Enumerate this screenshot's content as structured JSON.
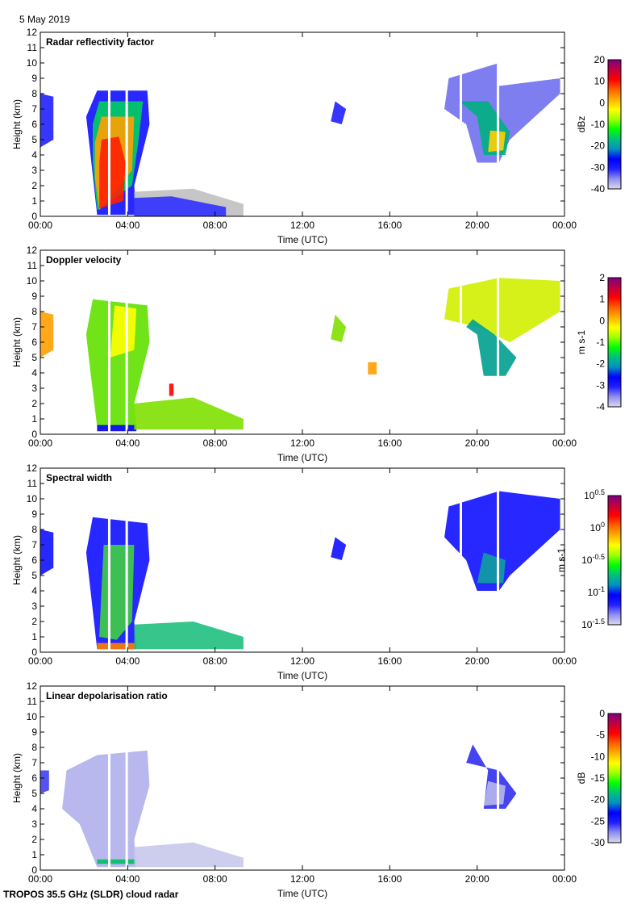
{
  "header": {
    "date": "5 May 2019"
  },
  "footer": {
    "instrument": "TROPOS 35.5 GHz (SLDR) cloud radar"
  },
  "colors": {
    "scale": [
      "#dcd8ec",
      "#9090f0",
      "#2020ff",
      "#0000ff",
      "#0090c0",
      "#00c080",
      "#00ff00",
      "#a0ff00",
      "#ffff00",
      "#ffb000",
      "#ff6000",
      "#ff0000",
      "#c00040",
      "#800080"
    ]
  },
  "chart_data": [
    {
      "type": "heatmap",
      "title": "Radar reflectivity factor",
      "xlabel": "Time (UTC)",
      "ylabel": "Height (km)",
      "xlim": [
        0,
        24
      ],
      "ylim": [
        0,
        12
      ],
      "xticks": [
        "00:00",
        "04:00",
        "08:00",
        "12:00",
        "16:00",
        "20:00",
        "00:00"
      ],
      "yticks": [
        "0",
        "1",
        "2",
        "3",
        "4",
        "5",
        "6",
        "7",
        "8",
        "9",
        "10",
        "11",
        "12"
      ],
      "colorbar": {
        "unit": "dBz",
        "range": [
          -40,
          20
        ],
        "ticks": [
          "20",
          "10",
          "0",
          "-10",
          "-20",
          "-30",
          "-40"
        ]
      },
      "regions": [
        {
          "color": "#2020ff",
          "points": [
            [
              0,
              4.5
            ],
            [
              0,
              8
            ],
            [
              0.6,
              7.8
            ],
            [
              0.6,
              5
            ]
          ]
        },
        {
          "color": "#1010ff",
          "points": [
            [
              2.1,
              6.5
            ],
            [
              2.6,
              8.2
            ],
            [
              4.9,
              8.2
            ],
            [
              5,
              6
            ],
            [
              4.3,
              2
            ],
            [
              4.4,
              0.1
            ],
            [
              2.6,
              0.1
            ],
            [
              2.3,
              4
            ]
          ]
        },
        {
          "color": "#00d060",
          "points": [
            [
              2.4,
              6
            ],
            [
              2.7,
              7.5
            ],
            [
              4.7,
              7.5
            ],
            [
              4.5,
              5
            ],
            [
              4.2,
              2
            ],
            [
              2.6,
              0.4
            ],
            [
              2.4,
              3.5
            ]
          ]
        },
        {
          "color": "#ffa000",
          "points": [
            [
              2.5,
              4.8
            ],
            [
              2.8,
              6.5
            ],
            [
              4.3,
              6.5
            ],
            [
              4.2,
              3
            ],
            [
              2.7,
              0.4
            ],
            [
              2.5,
              2.5
            ]
          ]
        },
        {
          "color": "#ff2000",
          "points": [
            [
              2.7,
              3.5
            ],
            [
              2.8,
              5
            ],
            [
              3.6,
              5.2
            ],
            [
              3.9,
              3.5
            ],
            [
              3.8,
              1
            ],
            [
              2.7,
              0.5
            ]
          ]
        },
        {
          "color": "#c0c0c0",
          "points": [
            [
              4.3,
              0
            ],
            [
              4.3,
              1.6
            ],
            [
              7,
              1.8
            ],
            [
              9.3,
              0.8
            ],
            [
              9.3,
              0
            ]
          ]
        },
        {
          "color": "#3030ff",
          "points": [
            [
              4.3,
              0
            ],
            [
              4.3,
              1.2
            ],
            [
              6,
              1.3
            ],
            [
              8.5,
              0.6
            ],
            [
              8.5,
              0
            ]
          ]
        },
        {
          "color": "#2020ff",
          "points": [
            [
              13.3,
              6.2
            ],
            [
              13.5,
              7.5
            ],
            [
              14,
              7
            ],
            [
              13.8,
              6
            ]
          ]
        },
        {
          "color": "#7070f0",
          "points": [
            [
              18.5,
              7
            ],
            [
              18.7,
              9
            ],
            [
              21,
              10
            ],
            [
              21,
              8.5
            ],
            [
              23.8,
              9
            ],
            [
              23.8,
              8
            ],
            [
              21.5,
              5
            ],
            [
              21,
              3.5
            ],
            [
              20,
              3.5
            ],
            [
              19.5,
              6
            ]
          ]
        },
        {
          "color": "#00b080",
          "points": [
            [
              19.2,
              7.5
            ],
            [
              20,
              6.5
            ],
            [
              20.3,
              4
            ],
            [
              21.3,
              4
            ],
            [
              21.5,
              5.5
            ],
            [
              20.5,
              7.5
            ]
          ]
        },
        {
          "color": "#ffd000",
          "points": [
            [
              20.5,
              4.2
            ],
            [
              20.6,
              5.6
            ],
            [
              21.3,
              5.5
            ],
            [
              21.2,
              4.3
            ]
          ]
        }
      ]
    },
    {
      "type": "heatmap",
      "title": "Doppler velocity",
      "xlabel": "Time (UTC)",
      "ylabel": "Height (km)",
      "xlim": [
        0,
        24
      ],
      "ylim": [
        0,
        12
      ],
      "xticks": [
        "00:00",
        "04:00",
        "08:00",
        "12:00",
        "16:00",
        "20:00",
        "00:00"
      ],
      "yticks": [
        "0",
        "1",
        "2",
        "3",
        "4",
        "5",
        "6",
        "7",
        "8",
        "9",
        "10",
        "11",
        "12"
      ],
      "colorbar": {
        "unit": "m s-1",
        "range": [
          -4,
          2
        ],
        "ticks": [
          "2",
          "1",
          "0",
          "-1",
          "-2",
          "-3",
          "-4"
        ]
      },
      "regions": [
        {
          "color": "#ffa000",
          "points": [
            [
              0,
              5
            ],
            [
              0,
              8
            ],
            [
              0.6,
              7.8
            ],
            [
              0.6,
              5.5
            ]
          ]
        },
        {
          "color": "#60e000",
          "points": [
            [
              2.1,
              6.5
            ],
            [
              2.4,
              8.8
            ],
            [
              4.9,
              8.4
            ],
            [
              5,
              6
            ],
            [
              4.3,
              2
            ],
            [
              4.4,
              0.5
            ],
            [
              2.6,
              0.5
            ],
            [
              2.3,
              4
            ]
          ]
        },
        {
          "color": "#ffff00",
          "points": [
            [
              3.2,
              5
            ],
            [
              3.4,
              8.4
            ],
            [
              4.4,
              8.2
            ],
            [
              4.3,
              5.5
            ]
          ]
        },
        {
          "color": "#0000e0",
          "points": [
            [
              2.6,
              0.2
            ],
            [
              2.6,
              0.6
            ],
            [
              4.4,
              0.6
            ],
            [
              4.4,
              0.2
            ]
          ]
        },
        {
          "color": "#80e000",
          "points": [
            [
              4.3,
              0.3
            ],
            [
              4.3,
              2
            ],
            [
              7,
              2.4
            ],
            [
              9.3,
              1
            ],
            [
              9.3,
              0.3
            ]
          ]
        },
        {
          "color": "#ff0000",
          "points": [
            [
              5.9,
              2.5
            ],
            [
              5.9,
              3.3
            ],
            [
              6.1,
              3.3
            ],
            [
              6.1,
              2.5
            ]
          ]
        },
        {
          "color": "#80e000",
          "points": [
            [
              13.3,
              6.2
            ],
            [
              13.5,
              7.8
            ],
            [
              14,
              7
            ],
            [
              13.8,
              6
            ]
          ]
        },
        {
          "color": "#ffa000",
          "points": [
            [
              15,
              3.9
            ],
            [
              15,
              4.7
            ],
            [
              15.4,
              4.7
            ],
            [
              15.4,
              3.9
            ]
          ]
        },
        {
          "color": "#d0f000",
          "points": [
            [
              18.5,
              7.5
            ],
            [
              18.7,
              9.5
            ],
            [
              21,
              10.2
            ],
            [
              23.8,
              10
            ],
            [
              23.8,
              8
            ],
            [
              21.5,
              6
            ],
            [
              20,
              7
            ]
          ]
        },
        {
          "color": "#00a090",
          "points": [
            [
              19.5,
              7
            ],
            [
              20,
              6.5
            ],
            [
              20.3,
              3.8
            ],
            [
              21.3,
              3.8
            ],
            [
              21.8,
              5
            ],
            [
              20.8,
              6.5
            ],
            [
              19.8,
              7.5
            ]
          ]
        }
      ]
    },
    {
      "type": "heatmap",
      "title": "Spectral width",
      "xlabel": "Time (UTC)",
      "ylabel": "Height (km)",
      "xlim": [
        0,
        24
      ],
      "ylim": [
        0,
        12
      ],
      "xticks": [
        "00:00",
        "04:00",
        "08:00",
        "12:00",
        "16:00",
        "20:00",
        "00:00"
      ],
      "yticks": [
        "0",
        "1",
        "2",
        "3",
        "4",
        "5",
        "6",
        "7",
        "8",
        "9",
        "10",
        "11",
        "12"
      ],
      "colorbar": {
        "unit": "m s-1",
        "range": [
          -1.5,
          0.5
        ],
        "scale": "log10",
        "ticks": [
          "10^0.5",
          "10^0",
          "10^-0.5",
          "10^-1",
          "10^-1.5"
        ]
      },
      "regions": [
        {
          "color": "#1010ff",
          "points": [
            [
              0,
              5
            ],
            [
              0,
              8
            ],
            [
              0.6,
              7.8
            ],
            [
              0.6,
              5.5
            ]
          ]
        },
        {
          "color": "#1010ff",
          "points": [
            [
              2.1,
              6.5
            ],
            [
              2.4,
              8.8
            ],
            [
              4.9,
              8.4
            ],
            [
              5,
              6
            ],
            [
              4.3,
              2
            ],
            [
              4.4,
              0.2
            ],
            [
              2.6,
              0.2
            ],
            [
              2.3,
              4
            ]
          ]
        },
        {
          "color": "#40d040",
          "points": [
            [
              2.7,
              1
            ],
            [
              2.9,
              7
            ],
            [
              4.3,
              7
            ],
            [
              4.2,
              2
            ],
            [
              3.5,
              0.8
            ]
          ]
        },
        {
          "color": "#ff8000",
          "points": [
            [
              2.6,
              0.2
            ],
            [
              2.6,
              0.6
            ],
            [
              4.4,
              0.6
            ],
            [
              4.4,
              0.2
            ]
          ]
        },
        {
          "color": "#20c080",
          "points": [
            [
              4.3,
              0.2
            ],
            [
              4.3,
              1.8
            ],
            [
              7,
              2
            ],
            [
              9.3,
              1
            ],
            [
              9.3,
              0.2
            ]
          ]
        },
        {
          "color": "#1010ff",
          "points": [
            [
              13.3,
              6.2
            ],
            [
              13.5,
              7.5
            ],
            [
              14,
              7
            ],
            [
              13.8,
              6
            ]
          ]
        },
        {
          "color": "#1010ff",
          "points": [
            [
              18.5,
              7.5
            ],
            [
              18.7,
              9.5
            ],
            [
              21,
              10.5
            ],
            [
              23.8,
              10
            ],
            [
              23.8,
              8
            ],
            [
              21.5,
              5
            ],
            [
              21,
              4
            ],
            [
              20,
              4
            ],
            [
              19.5,
              6
            ]
          ]
        },
        {
          "color": "#10a0a0",
          "points": [
            [
              20,
              4.5
            ],
            [
              20.3,
              6.5
            ],
            [
              21.3,
              6
            ],
            [
              21.2,
              4.5
            ]
          ]
        }
      ]
    },
    {
      "type": "heatmap",
      "title": "Linear depolarisation ratio",
      "xlabel": "Time (UTC)",
      "ylabel": "Height (km)",
      "xlim": [
        0,
        24
      ],
      "ylim": [
        0,
        12
      ],
      "xticks": [
        "00:00",
        "04:00",
        "08:00",
        "12:00",
        "16:00",
        "20:00",
        "00:00"
      ],
      "yticks": [
        "0",
        "1",
        "2",
        "3",
        "4",
        "5",
        "6",
        "7",
        "8",
        "9",
        "10",
        "11",
        "12"
      ],
      "colorbar": {
        "unit": "dB",
        "range": [
          -30,
          0
        ],
        "ticks": [
          "0",
          "-5",
          "-10",
          "-15",
          "-20",
          "-25",
          "-30"
        ]
      },
      "regions": [
        {
          "color": "#4040f0",
          "points": [
            [
              0,
              5
            ],
            [
              0,
              6.5
            ],
            [
              0.4,
              6.5
            ],
            [
              0.4,
              5.2
            ]
          ]
        },
        {
          "color": "#b0b0ec",
          "points": [
            [
              1,
              4
            ],
            [
              1.2,
              6.5
            ],
            [
              2.6,
              7.5
            ],
            [
              4.9,
              7.8
            ],
            [
              5,
              5.5
            ],
            [
              4.3,
              2
            ],
            [
              4.4,
              0.2
            ],
            [
              2.6,
              0.2
            ],
            [
              1.8,
              3
            ]
          ]
        },
        {
          "color": "#00c060",
          "points": [
            [
              2.6,
              0.4
            ],
            [
              2.6,
              0.7
            ],
            [
              4.4,
              0.7
            ],
            [
              4.4,
              0.4
            ]
          ]
        },
        {
          "color": "#c8c8ec",
          "points": [
            [
              4.3,
              0.2
            ],
            [
              4.3,
              1.5
            ],
            [
              7,
              1.8
            ],
            [
              9.3,
              0.8
            ],
            [
              9.3,
              0.2
            ]
          ]
        },
        {
          "color": "#3030f0",
          "points": [
            [
              19.5,
              7
            ],
            [
              19.8,
              8.2
            ],
            [
              20.5,
              6.5
            ],
            [
              20.3,
              4
            ],
            [
              21.3,
              4
            ],
            [
              21.8,
              5
            ],
            [
              21,
              6.5
            ]
          ]
        },
        {
          "color": "#b8b8ec",
          "points": [
            [
              20.3,
              4.2
            ],
            [
              20.5,
              5.8
            ],
            [
              21.3,
              5.5
            ],
            [
              21.2,
              4.3
            ]
          ]
        }
      ]
    }
  ]
}
